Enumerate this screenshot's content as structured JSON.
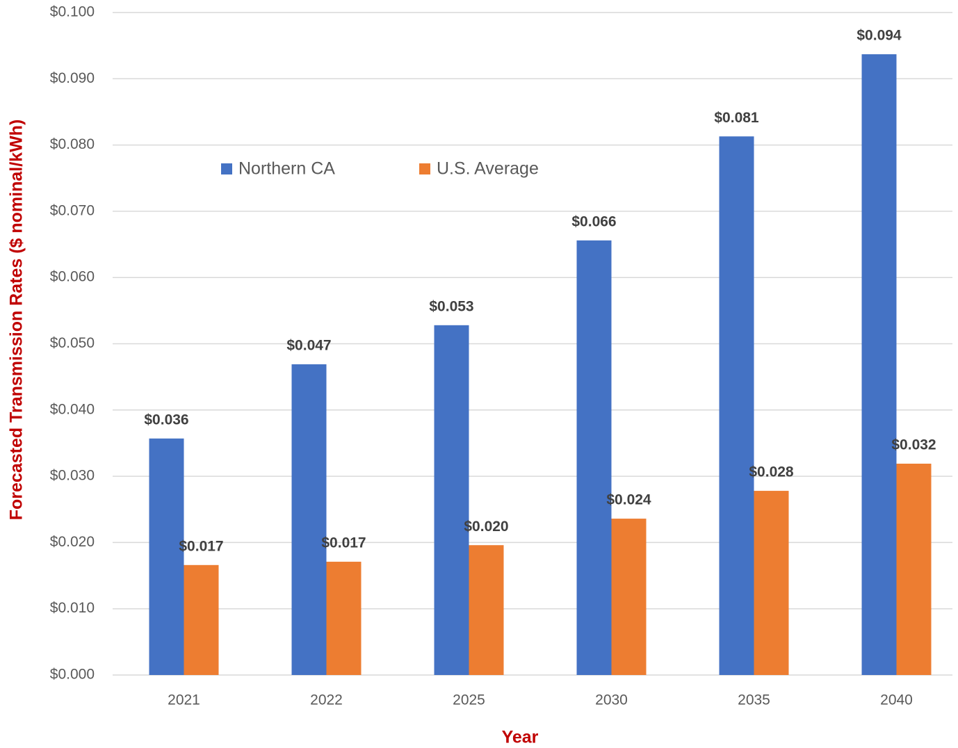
{
  "chart_data": {
    "type": "bar",
    "x_label": "Year",
    "y_label": "Forecasted Transmission Rates ($ nominal/kWh)",
    "categories": [
      "2021",
      "2022",
      "2025",
      "2030",
      "2035",
      "2040"
    ],
    "series": [
      {
        "name": "Northern CA",
        "color": "#4472c4",
        "values": [
          0.0357,
          0.0469,
          0.0528,
          0.0656,
          0.0813,
          0.0937
        ],
        "value_labels": [
          "$0.036",
          "$0.047",
          "$0.053",
          "$0.066",
          "$0.081",
          "$0.094"
        ]
      },
      {
        "name": "U.S. Average",
        "color": "#ed7d31",
        "values": [
          0.0166,
          0.0171,
          0.0196,
          0.0236,
          0.0278,
          0.0319
        ],
        "value_labels": [
          "$0.017",
          "$0.017",
          "$0.020",
          "$0.024",
          "$0.028",
          "$0.032"
        ]
      }
    ],
    "ylim": [
      0,
      0.1
    ],
    "yticks": [
      {
        "value": 0,
        "label": "$0.000"
      },
      {
        "value": 0.01,
        "label": "$0.010"
      },
      {
        "value": 0.02,
        "label": "$0.020"
      },
      {
        "value": 0.03,
        "label": "$0.030"
      },
      {
        "value": 0.04,
        "label": "$0.040"
      },
      {
        "value": 0.05,
        "label": "$0.050"
      },
      {
        "value": 0.06,
        "label": "$0.060"
      },
      {
        "value": 0.07,
        "label": "$0.070"
      },
      {
        "value": 0.08,
        "label": "$0.080"
      },
      {
        "value": 0.09,
        "label": "$0.090"
      },
      {
        "value": 0.1,
        "label": "$0.100"
      }
    ],
    "grid": true,
    "legend": "top-left"
  }
}
